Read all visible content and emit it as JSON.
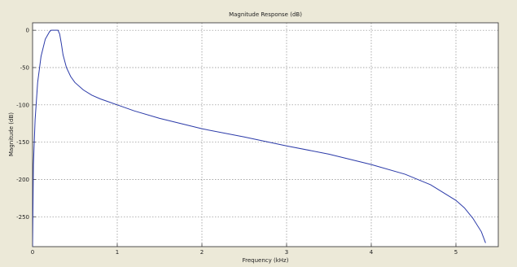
{
  "colors": {
    "figure_background": "#ece9d8",
    "plot_background": "#ffffff",
    "grid": "#8a8a8a",
    "line": "#2b3aa8",
    "axis": "#404040"
  },
  "chart_data": {
    "type": "line",
    "title": "Magnitude Response (dB)",
    "xlabel": "Frequency (kHz)",
    "ylabel": "Magnitude (dB)",
    "xlim": [
      0,
      5.5
    ],
    "ylim": [
      -290,
      10
    ],
    "grid": true,
    "xticks": [
      0,
      1,
      2,
      3,
      4,
      5
    ],
    "xtick_labels": [
      "0",
      "1",
      "2",
      "3",
      "4",
      "5"
    ],
    "yticks": [
      0,
      -50,
      -100,
      -150,
      -200,
      -250
    ],
    "ytick_labels": [
      "0",
      "-50",
      "-100",
      "-150",
      "-200",
      "-250"
    ],
    "series": [
      {
        "x": [
          0,
          0.01,
          0.03,
          0.06,
          0.1,
          0.15,
          0.2,
          0.22,
          0.24,
          0.27,
          0.3,
          0.32,
          0.34,
          0.36,
          0.4,
          0.45,
          0.5,
          0.6,
          0.7,
          0.8,
          1.0,
          1.2,
          1.5,
          2.0,
          2.5,
          3.0,
          3.5,
          4.0,
          4.4,
          4.7,
          5.0,
          5.1,
          5.2,
          5.3,
          5.35
        ],
        "y": [
          -290,
          -180,
          -120,
          -70,
          -35,
          -12,
          -2,
          0,
          0,
          0,
          0,
          -5,
          -18,
          -33,
          -50,
          -62,
          -70,
          -80,
          -87,
          -92,
          -100,
          -108,
          -118,
          -132,
          -143,
          -155,
          -166,
          -180,
          -193,
          -207,
          -228,
          -238,
          -252,
          -270,
          -285
        ]
      }
    ]
  }
}
